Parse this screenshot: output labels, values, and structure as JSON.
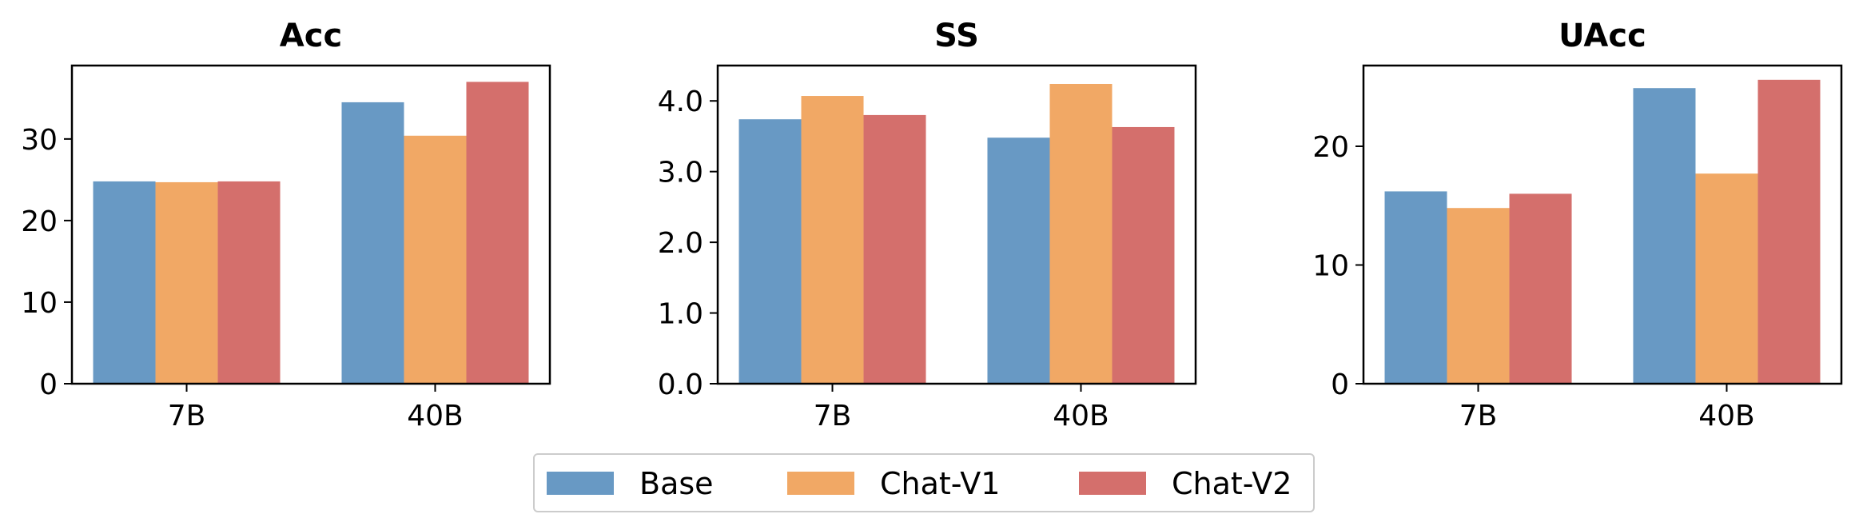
{
  "chart_data": [
    {
      "type": "bar",
      "title": "Acc",
      "categories": [
        "7B",
        "40B"
      ],
      "series": [
        {
          "name": "Base",
          "values": [
            24.8,
            34.5
          ]
        },
        {
          "name": "Chat-V1",
          "values": [
            24.7,
            30.4
          ]
        },
        {
          "name": "Chat-V2",
          "values": [
            24.8,
            37.0
          ]
        }
      ],
      "ylim": [
        0,
        39
      ],
      "yticks": [
        0,
        10,
        20,
        30
      ],
      "ytick_labels": [
        "0",
        "10",
        "20",
        "30"
      ],
      "xlabel": "",
      "ylabel": "",
      "grid": false
    },
    {
      "type": "bar",
      "title": "SS",
      "categories": [
        "7B",
        "40B"
      ],
      "series": [
        {
          "name": "Base",
          "values": [
            3.74,
            3.48
          ]
        },
        {
          "name": "Chat-V1",
          "values": [
            4.07,
            4.24
          ]
        },
        {
          "name": "Chat-V2",
          "values": [
            3.8,
            3.63
          ]
        }
      ],
      "ylim": [
        0,
        4.5
      ],
      "yticks": [
        0,
        1,
        2,
        3,
        4
      ],
      "ytick_labels": [
        "0.0",
        "1.0",
        "2.0",
        "3.0",
        "4.0"
      ],
      "xlabel": "",
      "ylabel": "",
      "grid": false
    },
    {
      "type": "bar",
      "title": "UAcc",
      "categories": [
        "7B",
        "40B"
      ],
      "series": [
        {
          "name": "Base",
          "values": [
            16.2,
            24.9
          ]
        },
        {
          "name": "Chat-V1",
          "values": [
            14.8,
            17.7
          ]
        },
        {
          "name": "Chat-V2",
          "values": [
            16.0,
            25.6
          ]
        }
      ],
      "ylim": [
        0,
        26.8
      ],
      "yticks": [
        0,
        10,
        20
      ],
      "ytick_labels": [
        "0",
        "10",
        "20"
      ],
      "xlabel": "",
      "ylabel": "",
      "grid": false
    }
  ],
  "legend": {
    "placement": "bottom-center",
    "entries": [
      {
        "label": "Base",
        "color": "#6899c4"
      },
      {
        "label": "Chat-V1",
        "color": "#f1a865"
      },
      {
        "label": "Chat-V2",
        "color": "#d46f6c"
      }
    ]
  },
  "colors": {
    "Base": "#6899c4",
    "Chat-V1": "#f1a865",
    "Chat-V2": "#d46f6c"
  }
}
